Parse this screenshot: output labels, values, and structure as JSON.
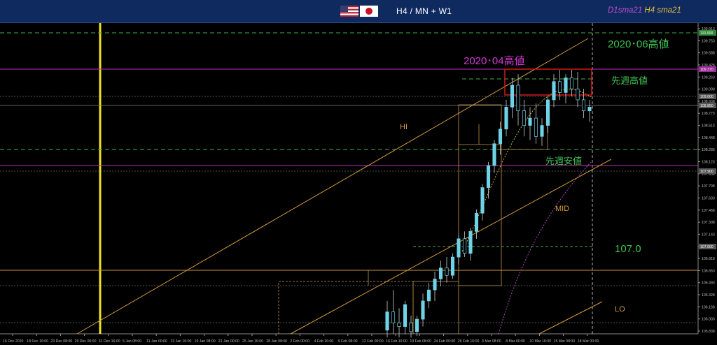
{
  "header": {
    "timeframe": "H4 / MN + W1",
    "indicator_d1": "D1sma21",
    "indicator_h4": "H4 sma21",
    "flags": [
      "us-flag-icon",
      "jp-flag-icon"
    ]
  },
  "annotations": {
    "high_2020_04": "2020･04高値",
    "high_2020_06": "2020･06高値",
    "last_week_high": "先週高値",
    "last_week_low": "先週安値",
    "hi": "HI",
    "mid": "MID",
    "lo": "LO",
    "level_107": "107.0"
  },
  "chart_data": {
    "type": "candlestick",
    "title": "",
    "xlabel": "",
    "ylabel": "",
    "ylim": [
      105.75,
      110.0
    ],
    "y_ticks": [
      "109.913",
      "109.753",
      "109.588",
      "109.428",
      "109.263",
      "109.098",
      "108.938",
      "108.773",
      "108.613",
      "108.448",
      "108.283",
      "108.123",
      "107.958",
      "107.798",
      "107.633",
      "107.468",
      "107.308",
      "107.143",
      "106.983",
      "106.818",
      "106.653",
      "106.493",
      "106.328",
      "106.168",
      "106.003",
      "105.838"
    ],
    "x_ticks": [
      "16 Dec 2020",
      "18 Dec 16:00",
      "23 Dec 08:00",
      "29 Dec 00:00",
      "31 Dec 16:00",
      "6 Jan 08:00",
      "11 Jan 00:00",
      "13 Jan 16:00",
      "19 Jan 08:00",
      "21 Jan 00:00",
      "25 Jan 16:00",
      "28 Jan 08:00",
      "2 Feb 00:00",
      "4 Feb 16:00",
      "9 Feb 08:00",
      "12 Feb 00:00",
      "16 Feb 16:00",
      "19 Feb 08:00",
      "24 Feb 00:00",
      "26 Feb 16:00",
      "3 Mar 08:00",
      "8 Mar 00:00",
      "10 Mar 16:00",
      "15 Mar 08:00",
      "18 Mar 00:00"
    ],
    "horizontal_levels": {
      "high_2020_06": 110.0,
      "high_2020_04": 109.37,
      "last_week_high": 109.26,
      "last_week_low": 108.31,
      "level_107": 107.0
    },
    "price_tags": [
      "110.000",
      "109.370",
      "109.000",
      "108.850",
      "107.900",
      "107.000"
    ],
    "series": [
      {
        "name": "USD/JPY H4",
        "candles": [
          {
            "o": 105.8,
            "h": 106.2,
            "l": 105.7,
            "c": 106.05
          },
          {
            "o": 106.05,
            "h": 106.35,
            "l": 105.75,
            "c": 105.9
          },
          {
            "o": 105.9,
            "h": 106.1,
            "l": 105.7,
            "c": 105.85
          },
          {
            "o": 105.85,
            "h": 106.2,
            "l": 105.75,
            "c": 106.15
          },
          {
            "o": 105.9,
            "h": 106.0,
            "l": 105.7,
            "c": 105.78
          },
          {
            "o": 105.78,
            "h": 106.0,
            "l": 105.72,
            "c": 105.95
          },
          {
            "o": 105.95,
            "h": 106.3,
            "l": 105.85,
            "c": 106.2
          },
          {
            "o": 106.2,
            "h": 106.45,
            "l": 106.1,
            "c": 106.35
          },
          {
            "o": 106.35,
            "h": 106.6,
            "l": 106.2,
            "c": 106.5
          },
          {
            "o": 106.5,
            "h": 106.75,
            "l": 106.4,
            "c": 106.65
          },
          {
            "o": 106.65,
            "h": 106.8,
            "l": 106.45,
            "c": 106.55
          },
          {
            "o": 106.55,
            "h": 106.85,
            "l": 106.5,
            "c": 106.8
          },
          {
            "o": 106.8,
            "h": 107.1,
            "l": 106.7,
            "c": 107.05
          },
          {
            "o": 107.05,
            "h": 107.15,
            "l": 106.8,
            "c": 106.85
          },
          {
            "o": 106.85,
            "h": 107.2,
            "l": 106.75,
            "c": 107.15
          },
          {
            "o": 107.15,
            "h": 107.45,
            "l": 107.05,
            "c": 107.4
          },
          {
            "o": 107.4,
            "h": 107.8,
            "l": 107.3,
            "c": 107.75
          },
          {
            "o": 107.75,
            "h": 108.1,
            "l": 107.6,
            "c": 108.05
          },
          {
            "o": 108.05,
            "h": 108.4,
            "l": 107.95,
            "c": 108.35
          },
          {
            "o": 108.35,
            "h": 108.65,
            "l": 108.2,
            "c": 108.55
          },
          {
            "o": 108.55,
            "h": 108.95,
            "l": 108.45,
            "c": 108.85
          },
          {
            "o": 108.85,
            "h": 109.25,
            "l": 108.7,
            "c": 109.15
          },
          {
            "o": 109.15,
            "h": 109.3,
            "l": 108.6,
            "c": 108.8
          },
          {
            "o": 108.8,
            "h": 108.95,
            "l": 108.45,
            "c": 108.6
          },
          {
            "o": 108.6,
            "h": 108.85,
            "l": 108.4,
            "c": 108.7
          },
          {
            "o": 108.7,
            "h": 108.9,
            "l": 108.35,
            "c": 108.45
          },
          {
            "o": 108.45,
            "h": 108.7,
            "l": 108.32,
            "c": 108.6
          },
          {
            "o": 108.6,
            "h": 109.0,
            "l": 108.5,
            "c": 108.95
          },
          {
            "o": 108.95,
            "h": 109.3,
            "l": 108.85,
            "c": 109.2
          },
          {
            "o": 109.2,
            "h": 109.36,
            "l": 108.95,
            "c": 109.05
          },
          {
            "o": 109.05,
            "h": 109.3,
            "l": 108.9,
            "c": 109.25
          },
          {
            "o": 109.25,
            "h": 109.36,
            "l": 109.0,
            "c": 109.1
          },
          {
            "o": 109.1,
            "h": 109.33,
            "l": 108.85,
            "c": 108.95
          },
          {
            "o": 108.95,
            "h": 109.1,
            "l": 108.7,
            "c": 108.8
          },
          {
            "o": 108.8,
            "h": 108.95,
            "l": 108.65,
            "c": 108.85
          }
        ]
      }
    ]
  }
}
